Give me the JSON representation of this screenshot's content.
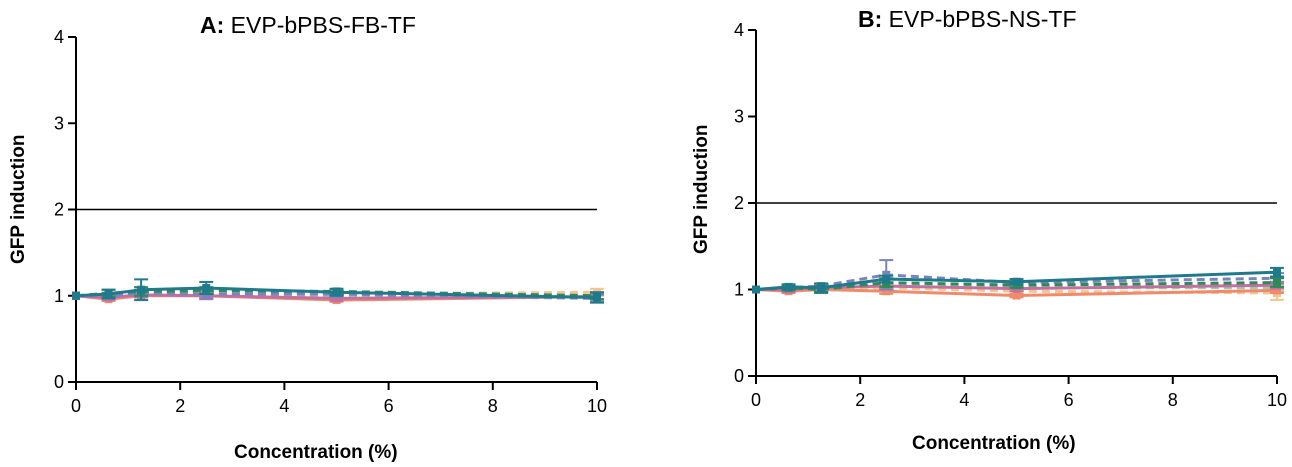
{
  "colors": {
    "series": [
      "#1f7a8c",
      "#2e8b57",
      "#7b83bf",
      "#c46fa0",
      "#f08a6a",
      "#f5c48f",
      "#9fc9a9"
    ],
    "reference_line": "#000000"
  },
  "chart_data": [
    {
      "type": "line",
      "title_prefix": "A:",
      "title_rest": "EVP-bPBS-FB-TF",
      "xlabel": "Concentration (%)",
      "ylabel": "GFP induction",
      "xlim": [
        0,
        10
      ],
      "ylim": [
        0,
        4
      ],
      "xticks": [
        0,
        2,
        4,
        6,
        8,
        10
      ],
      "yticks": [
        0,
        1,
        2,
        3,
        4
      ],
      "reference_y": 2,
      "grid": false,
      "x": [
        0,
        0.625,
        1.25,
        2.5,
        5,
        10
      ],
      "series": [
        {
          "values": [
            1.0,
            1.02,
            1.07,
            1.09,
            1.04,
            0.98
          ],
          "err": [
            0,
            0.05,
            0.12,
            0.07,
            0.04,
            0.06
          ],
          "dashed": false
        },
        {
          "values": [
            1.0,
            1.03,
            1.05,
            1.06,
            1.05,
            1.0
          ],
          "err": [
            0,
            0.04,
            0.05,
            0.04,
            0.03,
            0.04
          ],
          "dashed": true
        },
        {
          "values": [
            1.0,
            1.0,
            1.03,
            1.02,
            1.02,
            0.97
          ],
          "err": [
            0,
            0.03,
            0.04,
            0.05,
            0.03,
            0.04
          ],
          "dashed": true
        },
        {
          "values": [
            1.0,
            0.98,
            1.01,
            1.0,
            0.97,
            0.99
          ],
          "err": [
            0,
            0.03,
            0.03,
            0.04,
            0.03,
            0.03
          ],
          "dashed": false
        },
        {
          "values": [
            1.0,
            0.96,
            1.0,
            1.0,
            0.95,
            0.99
          ],
          "err": [
            0,
            0.02,
            0.02,
            0.03,
            0.02,
            0.03
          ],
          "dashed": false
        },
        {
          "values": [
            1.0,
            1.01,
            1.03,
            1.04,
            1.02,
            1.04
          ],
          "err": [
            0,
            0.03,
            0.04,
            0.04,
            0.03,
            0.04
          ],
          "dashed": true
        },
        {
          "values": [
            1.0,
            1.0,
            1.02,
            1.03,
            1.0,
            0.97
          ],
          "err": [
            0,
            0.02,
            0.03,
            0.03,
            0.02,
            0.03
          ],
          "dashed": true
        }
      ]
    },
    {
      "type": "line",
      "title_prefix": "B:",
      "title_rest": "EVP-bPBS-NS-TF",
      "xlabel": "Concentration (%)",
      "ylabel": "GFP induction",
      "xlim": [
        0,
        10
      ],
      "ylim": [
        0,
        4
      ],
      "xticks": [
        0,
        2,
        4,
        6,
        8,
        10
      ],
      "yticks": [
        0,
        1,
        2,
        3,
        4
      ],
      "reference_y": 2,
      "grid": false,
      "x": [
        0,
        0.625,
        1.25,
        2.5,
        5,
        10
      ],
      "series": [
        {
          "values": [
            1.0,
            1.03,
            1.02,
            1.12,
            1.09,
            1.2
          ],
          "err": [
            0,
            0.03,
            0.05,
            0.04,
            0.03,
            0.05
          ],
          "dashed": false
        },
        {
          "values": [
            1.0,
            1.02,
            1.0,
            1.08,
            1.05,
            1.08
          ],
          "err": [
            0,
            0.03,
            0.04,
            0.05,
            0.03,
            0.05
          ],
          "dashed": true
        },
        {
          "values": [
            1.0,
            1.02,
            1.04,
            1.17,
            1.08,
            1.13
          ],
          "err": [
            0,
            0.03,
            0.03,
            0.17,
            0.04,
            0.06
          ],
          "dashed": true
        },
        {
          "values": [
            1.0,
            1.0,
            1.02,
            1.04,
            1.01,
            1.05
          ],
          "err": [
            0,
            0.03,
            0.03,
            0.04,
            0.03,
            0.04
          ],
          "dashed": false
        },
        {
          "values": [
            1.0,
            0.98,
            1.0,
            0.98,
            0.93,
            0.99
          ],
          "err": [
            0,
            0.02,
            0.02,
            0.03,
            0.02,
            0.03
          ],
          "dashed": false
        },
        {
          "values": [
            1.0,
            0.99,
            1.01,
            1.02,
            0.98,
            0.96
          ],
          "err": [
            0,
            0.03,
            0.03,
            0.03,
            0.03,
            0.08
          ],
          "dashed": true
        },
        {
          "values": [
            1.0,
            1.01,
            1.0,
            1.05,
            1.02,
            1.02
          ],
          "err": [
            0,
            0.02,
            0.03,
            0.03,
            0.02,
            0.04
          ],
          "dashed": true
        }
      ]
    }
  ]
}
